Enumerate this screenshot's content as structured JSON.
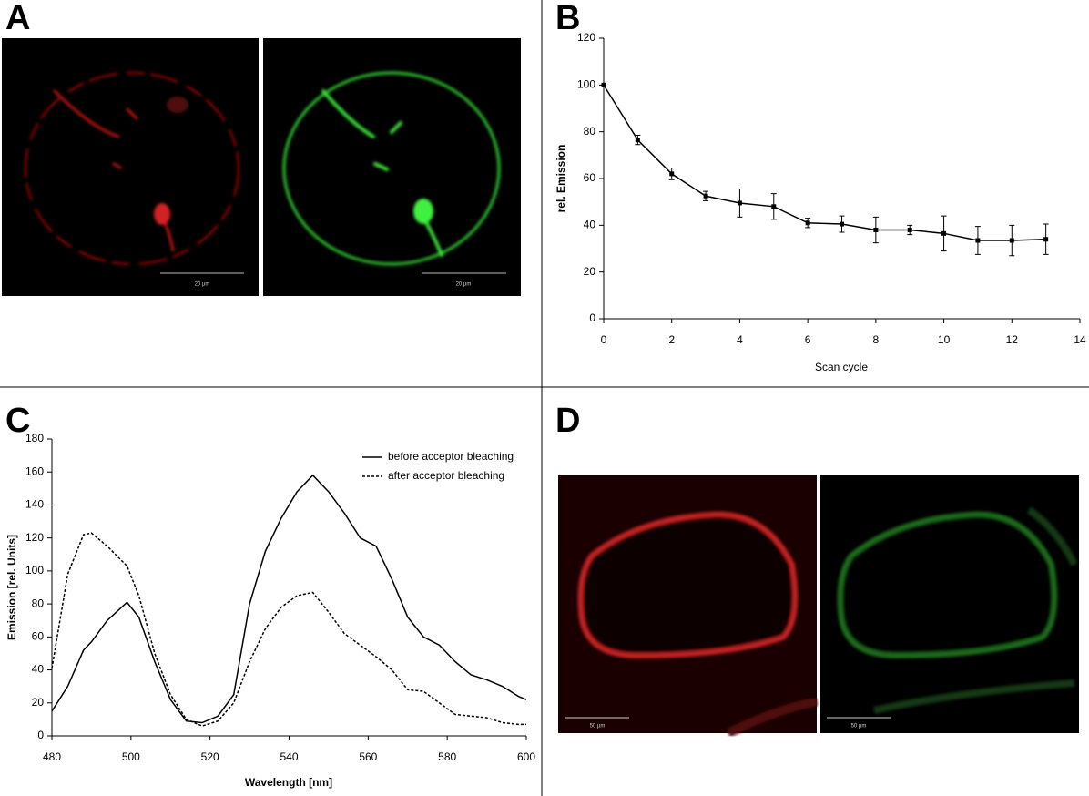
{
  "panels": {
    "labels": [
      "A",
      "B",
      "C",
      "D"
    ],
    "scale_bars": [
      "20 µm",
      "20 µm",
      "50 µm",
      "50 µm"
    ]
  },
  "chart_data": [
    {
      "type": "line",
      "x_label": "Scan cycle",
      "y_label": "rel. Emission",
      "x": [
        0,
        1,
        2,
        3,
        4,
        5,
        6,
        7,
        8,
        9,
        10,
        11,
        12,
        13
      ],
      "values": [
        100,
        76.5,
        62,
        52.5,
        49.5,
        48,
        41,
        40.5,
        38,
        38,
        36.5,
        33.5,
        33.5,
        34
      ],
      "errors": [
        0,
        2,
        2.5,
        2,
        6,
        5.5,
        2,
        3.5,
        5.5,
        2,
        7.5,
        6,
        6.5,
        6.5
      ],
      "color": "#000000",
      "xlim": [
        0,
        14
      ],
      "xticks": [
        0,
        2,
        4,
        6,
        8,
        10,
        12,
        14
      ],
      "ylim": [
        0,
        120
      ],
      "yticks": [
        0,
        20,
        40,
        60,
        80,
        100,
        120
      ]
    },
    {
      "type": "line",
      "x_label": "Wavelength [nm]",
      "y_label": "Emission [rel. Units]",
      "x": [
        480,
        484,
        488,
        490,
        494,
        499,
        502,
        506,
        510,
        514,
        518,
        522,
        526,
        530,
        534,
        538,
        542,
        546,
        550,
        554,
        558,
        562,
        566,
        570,
        574,
        578,
        582,
        586,
        590,
        594,
        598,
        600
      ],
      "series": [
        {
          "name": "before acceptor bleaching",
          "color": "#000000",
          "style": "solid",
          "values": [
            15,
            30,
            52,
            57,
            70,
            81,
            72,
            45,
            22,
            9,
            8,
            12,
            25,
            80,
            112,
            132,
            148,
            158,
            148,
            135,
            120,
            115,
            95,
            72,
            60,
            55,
            45,
            37,
            34,
            30,
            24,
            22
          ]
        },
        {
          "name": "after acceptor bleaching",
          "color": "#000000",
          "style": "dashed",
          "values": [
            41,
            98,
            122,
            123,
            115,
            103,
            85,
            50,
            25,
            10,
            6,
            9,
            20,
            45,
            65,
            78,
            85,
            87,
            75,
            62,
            55,
            48,
            40,
            28,
            27,
            20,
            13,
            12,
            11,
            8,
            7,
            7
          ]
        }
      ],
      "legend": "upper right",
      "xlim": [
        480,
        600
      ],
      "xticks": [
        480,
        500,
        520,
        540,
        560,
        580,
        600
      ],
      "ylim": [
        0,
        180
      ],
      "yticks": [
        0,
        20,
        40,
        60,
        80,
        100,
        120,
        140,
        160,
        180
      ]
    }
  ]
}
